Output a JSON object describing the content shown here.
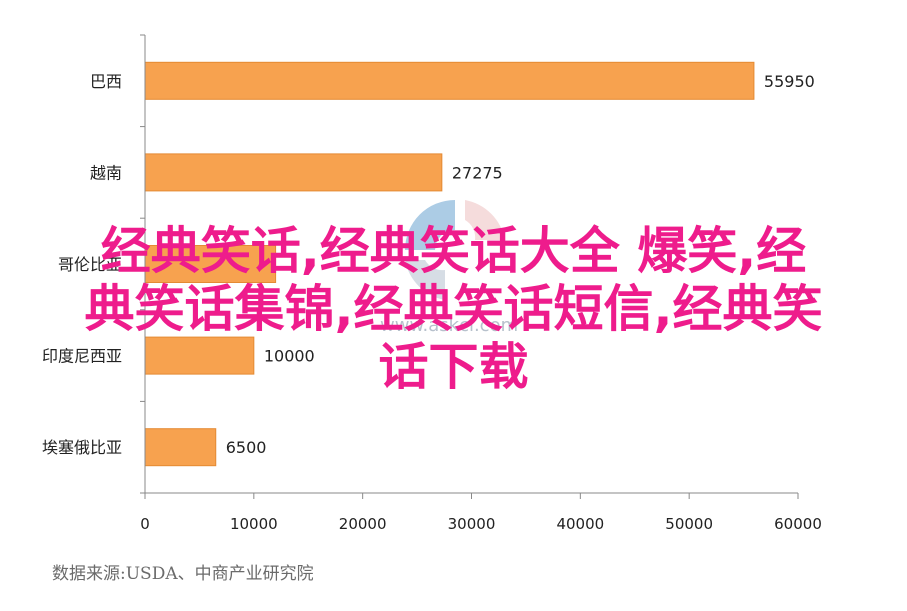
{
  "chart_data": {
    "type": "bar",
    "orientation": "horizontal",
    "categories": [
      "巴西",
      "越南",
      "哥伦比亚",
      "印度尼西亚",
      "埃塞俄比亚"
    ],
    "values": [
      55950,
      27275,
      12000,
      10000,
      6500
    ],
    "data_labels": [
      "55950",
      "27275",
      "",
      "10000",
      "6500"
    ],
    "xlim": [
      0,
      60000
    ],
    "xticks": [
      "0",
      "10000",
      "20000",
      "30000",
      "40000",
      "50000",
      "60000"
    ],
    "grid": false,
    "bar_color": "#f7a24f",
    "bar_edge_color": "#e48a33"
  },
  "overlay_text": {
    "line1": "经典笑话,经典笑话大全 爆笑,经",
    "line2": "典笑话集锦,经典笑话短信,经典笑",
    "line3": "话下载",
    "color": "#ee1c8c"
  },
  "watermark": {
    "text": "www.askci.com"
  },
  "source": "数据来源:USDA、中商产业研究院"
}
